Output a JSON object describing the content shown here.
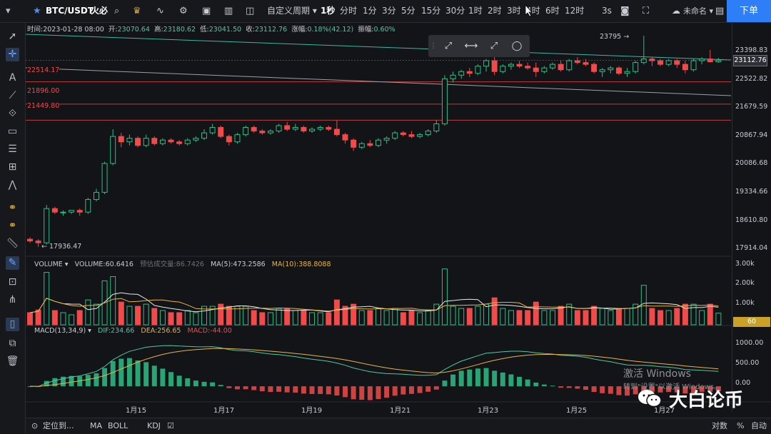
{
  "topbar": {
    "symbol": "BTC/USDT",
    "exchange": "火必",
    "custom_period": "自定义周期",
    "intervals": [
      "1秒",
      "分时",
      "1分",
      "3分",
      "5分",
      "15分",
      "30分",
      "1时",
      "2时",
      "3时",
      "4时",
      "6时",
      "12时"
    ],
    "active_interval": "1秒",
    "replay_speed": "3s",
    "account": "未命名",
    "order_button": "下单"
  },
  "infobar": {
    "time_label": "时间:",
    "time": "2023-01-28 08:00",
    "open_label": "开:",
    "open": "23070.64",
    "high_label": "高:",
    "high": "23180.62",
    "low_label": "低:",
    "low": "23041.50",
    "close_label": "收:",
    "close": "23112.76",
    "change_label": "涨幅:",
    "change": "0.18%(42.12)",
    "amplitude_label": "振幅:",
    "amplitude": "0.60%"
  },
  "price_axis": {
    "labels": [
      "23398.83",
      "22522.82",
      "21679.59",
      "20867.94",
      "20086.68",
      "19334.66",
      "18610.80",
      "17914.04"
    ],
    "current_price": "23112.76"
  },
  "horizontal_lines": [
    "22514.17",
    "21896.00",
    "21449.80"
  ],
  "annotations": {
    "peak": "23795",
    "trough": "17936.47"
  },
  "volume_panel": {
    "name": "VOLUME",
    "volume_label": "VOLUME:60.6416",
    "estimate_label": "预估成交量:86.7426",
    "ma5_label": "MA(5):473.2586",
    "ma10_label": "MA(10):388.8088",
    "axis": [
      "3.00k",
      "2.00k",
      "1.00k"
    ],
    "current": "60"
  },
  "macd_panel": {
    "name": "MACD(13,34,9)",
    "dif_label": "DIF:234.66",
    "dea_label": "DEA:256.65",
    "macd_label": "MACD:-44.00",
    "axis": [
      "1000.00",
      "500.00",
      "0.00"
    ]
  },
  "x_axis": [
    "1月15",
    "1月17",
    "1月19",
    "1月21",
    "1月23",
    "1月25",
    "1月27"
  ],
  "bottombar": {
    "locate": "定位到...",
    "indicators": [
      "MA",
      "BOLL",
      "KDJ"
    ],
    "log": "对数",
    "percent": "%",
    "auto": "自动"
  },
  "overlay": {
    "activation_title": "激活 Windows",
    "activation_sub": "转到\"设置\"以激活 Windows。",
    "brand": "大白论币"
  },
  "colors": {
    "up": "#2ebd85",
    "down": "#f04a4a",
    "accent": "#2d7ef7"
  },
  "chart_data": {
    "type": "candlestick",
    "x_axis_labels": [
      "1月15",
      "1月17",
      "1月19",
      "1月21",
      "1月23",
      "1月25",
      "1月27"
    ],
    "price_range": [
      17700,
      23800
    ],
    "candles": [
      [
        18150,
        18200,
        18050,
        18100
      ],
      [
        18100,
        18150,
        17937,
        18050
      ],
      [
        18050,
        19100,
        18000,
        19000
      ],
      [
        19000,
        19050,
        18850,
        18900
      ],
      [
        18900,
        18950,
        18800,
        18900
      ],
      [
        18900,
        18950,
        18850,
        18950
      ],
      [
        18950,
        19000,
        18800,
        18900
      ],
      [
        18900,
        19300,
        18850,
        19250
      ],
      [
        19250,
        19550,
        19200,
        19450
      ],
      [
        19450,
        20300,
        19400,
        20250
      ],
      [
        20250,
        21200,
        20200,
        21000
      ],
      [
        21000,
        21100,
        20700,
        20850
      ],
      [
        20850,
        21050,
        20750,
        20950
      ],
      [
        20950,
        21000,
        20700,
        20750
      ],
      [
        20750,
        21050,
        20700,
        20950
      ],
      [
        20950,
        21000,
        20750,
        20800
      ],
      [
        20800,
        20950,
        20750,
        20900
      ],
      [
        20900,
        20950,
        20800,
        20850
      ],
      [
        20850,
        20900,
        20750,
        20800
      ],
      [
        20800,
        20950,
        20750,
        20900
      ],
      [
        20900,
        21000,
        20850,
        20950
      ],
      [
        20950,
        21200,
        20900,
        21100
      ],
      [
        21100,
        21350,
        21050,
        21250
      ],
      [
        21250,
        21300,
        20950,
        21000
      ],
      [
        21000,
        21050,
        20750,
        20850
      ],
      [
        20850,
        21100,
        20800,
        21050
      ],
      [
        21050,
        21300,
        21000,
        21250
      ],
      [
        21250,
        21300,
        21100,
        21150
      ],
      [
        21150,
        21200,
        21050,
        21100
      ],
      [
        21100,
        21200,
        21050,
        21150
      ],
      [
        21150,
        21350,
        21100,
        21300
      ],
      [
        21300,
        21400,
        21150,
        21200
      ],
      [
        21200,
        21350,
        21150,
        21250
      ],
      [
        21250,
        21300,
        21100,
        21150
      ],
      [
        21150,
        21250,
        21100,
        21200
      ],
      [
        21200,
        21300,
        21150,
        21250
      ],
      [
        21250,
        21300,
        21150,
        21200
      ],
      [
        21200,
        21450,
        21000,
        21050
      ],
      [
        21050,
        21100,
        20800,
        20900
      ],
      [
        20900,
        20950,
        20600,
        20700
      ],
      [
        20700,
        20850,
        20650,
        20800
      ],
      [
        20800,
        20900,
        20700,
        20750
      ],
      [
        20750,
        20950,
        20700,
        20900
      ],
      [
        20900,
        21000,
        20800,
        20950
      ],
      [
        20950,
        21150,
        20900,
        21100
      ],
      [
        21100,
        21150,
        21000,
        21050
      ],
      [
        21050,
        21150,
        20950,
        21000
      ],
      [
        21000,
        21100,
        20950,
        21050
      ],
      [
        21050,
        21200,
        21000,
        21150
      ],
      [
        21150,
        21450,
        21100,
        21350
      ],
      [
        21350,
        22700,
        21300,
        22600
      ],
      [
        22600,
        22800,
        22500,
        22700
      ],
      [
        22700,
        22850,
        22600,
        22800
      ],
      [
        22800,
        22900,
        22650,
        22750
      ],
      [
        22750,
        23000,
        22700,
        22950
      ],
      [
        22950,
        23150,
        22800,
        23100
      ],
      [
        23100,
        23200,
        22700,
        22800
      ],
      [
        22800,
        23000,
        22750,
        22950
      ],
      [
        22950,
        23050,
        22850,
        23000
      ],
      [
        23000,
        23100,
        22900,
        22950
      ],
      [
        22950,
        23050,
        22850,
        22900
      ],
      [
        22900,
        23050,
        22650,
        22800
      ],
      [
        22800,
        22950,
        22750,
        22900
      ],
      [
        22900,
        23050,
        22850,
        23000
      ],
      [
        23000,
        23100,
        22800,
        22850
      ],
      [
        22850,
        23150,
        22800,
        23100
      ],
      [
        23100,
        23200,
        23000,
        23050
      ],
      [
        23050,
        23150,
        22950,
        23000
      ],
      [
        23000,
        23050,
        22750,
        22800
      ],
      [
        22800,
        22900,
        22650,
        22850
      ],
      [
        22850,
        22950,
        22750,
        22900
      ],
      [
        22900,
        22950,
        22700,
        22750
      ],
      [
        22750,
        22900,
        22650,
        22800
      ],
      [
        22800,
        23100,
        22750,
        23050
      ],
      [
        23050,
        23795,
        23000,
        23150
      ],
      [
        23150,
        23200,
        22950,
        23100
      ],
      [
        23100,
        23150,
        22950,
        23000
      ],
      [
        23000,
        23150,
        22950,
        23100
      ],
      [
        23100,
        23150,
        22900,
        23000
      ],
      [
        23000,
        23100,
        22750,
        22850
      ],
      [
        22850,
        23150,
        22800,
        23100
      ],
      [
        23100,
        23200,
        23000,
        23150
      ],
      [
        23150,
        23400,
        23050,
        23071
      ],
      [
        23071,
        23181,
        23042,
        23113
      ]
    ],
    "volume_axis": [
      "3.00k",
      "2.00k",
      "1.00k"
    ],
    "macd_axis": [
      "1000.00",
      "500.00",
      "0.00"
    ]
  }
}
